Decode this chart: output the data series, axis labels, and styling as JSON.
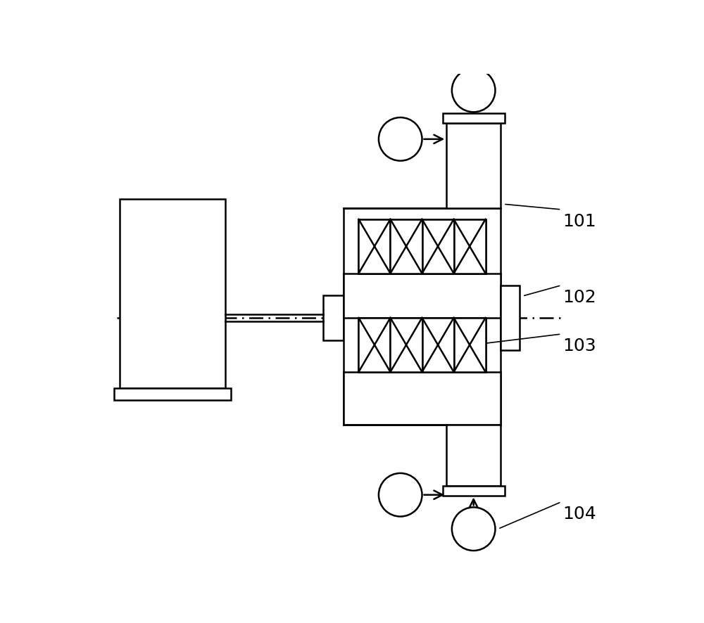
{
  "bg_color": "#ffffff",
  "lc": "#000000",
  "lw": 1.8,
  "label_101": "101",
  "label_102": "102",
  "label_103": "103",
  "label_104": "104",
  "figsize": [
    10.0,
    8.87
  ],
  "dpi": 100
}
